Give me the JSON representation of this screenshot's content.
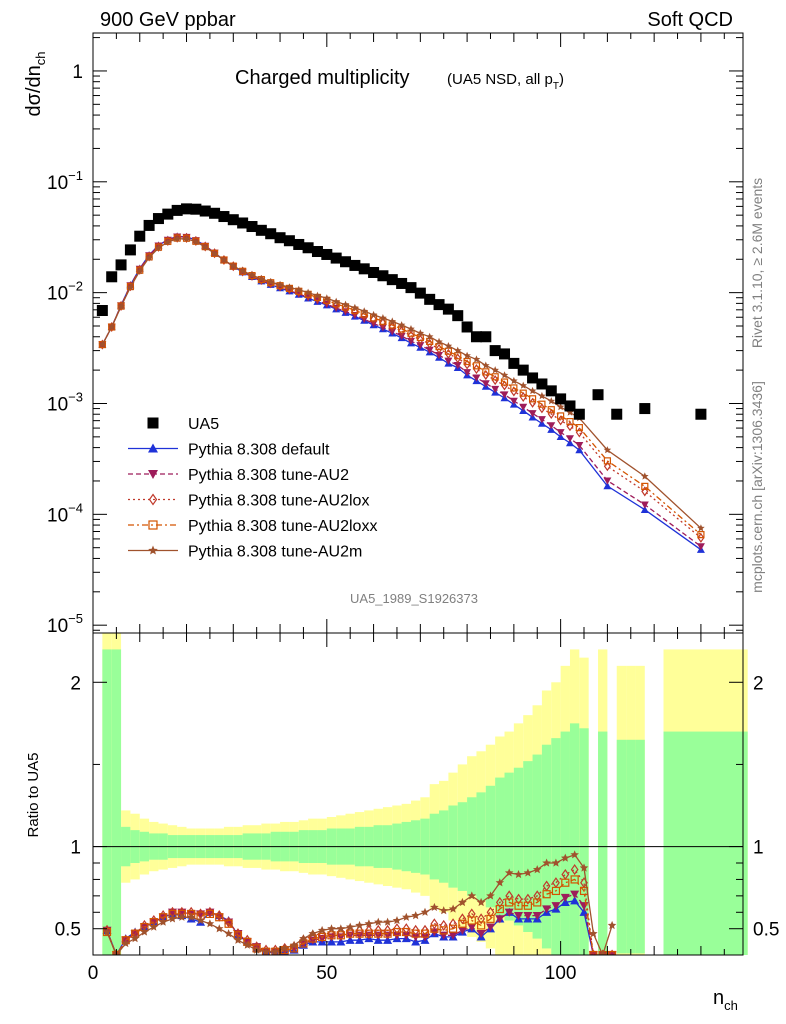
{
  "header": {
    "left": "900 GeV ppbar",
    "right": "Soft QCD"
  },
  "side": {
    "right_top": "Rivet 3.1.10, ≥ 2.6M events",
    "right_bottom": "mcplots.cern.ch [arXiv:1306.3436]"
  },
  "chart_data": [
    {
      "type": "scatter",
      "title": "Charged multiplicity",
      "subtitle": "(UA5 NSD, all p",
      "subtitle_sub": "T",
      "subtitle_close": ")",
      "ylabel": "dσ/dn",
      "ylabel_sub": "ch",
      "yscale": "log",
      "ylim": [
        8.5e-06,
        2.2
      ],
      "xlim": [
        0,
        139
      ],
      "ytick_labels": [
        "10",
        "10",
        "10",
        "10",
        "10",
        "1"
      ],
      "ytick_exps": [
        "−5",
        "−4",
        "−3",
        "−2",
        "−1",
        ""
      ],
      "watermark": "UA5_1989_S1926373",
      "legend_position": "lower-left",
      "series": [
        {
          "name": "UA5",
          "color": "#000000",
          "marker": "square",
          "x": [
            2,
            4,
            6,
            8,
            10,
            12,
            14,
            16,
            18,
            20,
            22,
            24,
            26,
            28,
            30,
            32,
            34,
            36,
            38,
            40,
            42,
            44,
            46,
            48,
            50,
            52,
            54,
            56,
            58,
            60,
            62,
            64,
            66,
            68,
            70,
            72,
            74,
            76,
            78,
            80,
            82,
            84,
            86,
            88,
            90,
            92,
            94,
            96,
            98,
            100,
            102,
            104,
            108,
            112,
            118,
            130
          ],
          "y": [
            0.0069,
            0.0139,
            0.0178,
            0.0243,
            0.0323,
            0.0404,
            0.0466,
            0.0511,
            0.0552,
            0.057,
            0.0566,
            0.0545,
            0.052,
            0.0486,
            0.0455,
            0.0425,
            0.0395,
            0.0365,
            0.034,
            0.0313,
            0.0294,
            0.0272,
            0.0254,
            0.0235,
            0.0221,
            0.0205,
            0.019,
            0.0176,
            0.0164,
            0.0152,
            0.0142,
            0.0131,
            0.0121,
            0.0111,
            0.0099,
            0.0087,
            0.0078,
            0.0071,
            0.0062,
            0.0049,
            0.004,
            0.004,
            0.003,
            0.0028,
            0.0023,
            0.002,
            0.0017,
            0.0015,
            0.0013,
            0.0011,
            0.00095,
            0.0008,
            0.0012,
            0.0008,
            0.0009,
            0.0008
          ]
        },
        {
          "name": "Pythia 8.308 default",
          "color": "#1f32d8",
          "marker": "triangle-up",
          "line": "solid"
        },
        {
          "name": "Pythia 8.308 tune-AU2",
          "color": "#9e1c5a",
          "marker": "triangle-down",
          "line": "dashed"
        },
        {
          "name": "Pythia 8.308 tune-AU2lox",
          "color": "#c0392b",
          "marker": "diamond-open",
          "line": "dotted"
        },
        {
          "name": "Pythia 8.308 tune-AU2loxx",
          "color": "#d35400",
          "marker": "square-open",
          "line": "dashdot"
        },
        {
          "name": "Pythia 8.308 tune-AU2m",
          "color": "#a0522d",
          "marker": "star",
          "line": "solid"
        }
      ],
      "mc_x": [
        2,
        4,
        6,
        8,
        10,
        12,
        14,
        16,
        18,
        20,
        22,
        24,
        26,
        28,
        30,
        32,
        34,
        36,
        38,
        40,
        42,
        44,
        46,
        48,
        50,
        52,
        54,
        56,
        58,
        60,
        62,
        64,
        66,
        68,
        70,
        72,
        74,
        76,
        78,
        80,
        82,
        84,
        86,
        88,
        90,
        92,
        94,
        96,
        98,
        100,
        102,
        104,
        110,
        118,
        130
      ],
      "mc_default": [
        0.0034,
        0.0049,
        0.0077,
        0.0117,
        0.0165,
        0.0218,
        0.0267,
        0.0301,
        0.0322,
        0.0319,
        0.0298,
        0.0265,
        0.0229,
        0.0197,
        0.0172,
        0.0153,
        0.0139,
        0.0127,
        0.0118,
        0.011,
        0.0103,
        0.0096,
        0.0089,
        0.0083,
        0.0077,
        0.0071,
        0.0066,
        0.0061,
        0.0056,
        0.0051,
        0.0047,
        0.0043,
        0.0039,
        0.0035,
        0.0032,
        0.0029,
        0.0026,
        0.0023,
        0.0021,
        0.0018,
        0.0016,
        0.00142,
        0.00126,
        0.00112,
        0.00098,
        0.00086,
        0.00075,
        0.00066,
        0.00058,
        0.0005,
        0.00044,
        0.00038,
        0.00018,
        0.00011,
        4.8e-05
      ],
      "mc_au2m": [
        0.0034,
        0.0049,
        0.0075,
        0.0112,
        0.0157,
        0.0207,
        0.0253,
        0.0286,
        0.0306,
        0.0306,
        0.0288,
        0.0258,
        0.0225,
        0.0197,
        0.0174,
        0.0157,
        0.0144,
        0.0133,
        0.0125,
        0.0118,
        0.0112,
        0.0106,
        0.01,
        0.0094,
        0.0089,
        0.0083,
        0.0078,
        0.0073,
        0.0068,
        0.0063,
        0.0059,
        0.0055,
        0.0051,
        0.0047,
        0.0043,
        0.004,
        0.0036,
        0.0033,
        0.003,
        0.0027,
        0.0025,
        0.0022,
        0.002,
        0.0018,
        0.0016,
        0.00145,
        0.0013,
        0.00117,
        0.00105,
        0.00093,
        0.00083,
        0.00074,
        0.00038,
        0.00022,
        7.5e-05
      ]
    },
    {
      "type": "line",
      "ylabel": "Ratio to UA5",
      "xlabel": "n",
      "xlabel_sub": "ch",
      "ylim": [
        0.34,
        2.3
      ],
      "xlim": [
        0,
        139
      ],
      "x_ticks": [
        0,
        50,
        100
      ],
      "y_ticks": [
        0.5,
        1,
        2
      ],
      "band_colors": {
        "inner": "#99ff99",
        "outer": "#ffff99"
      },
      "band_x": [
        2,
        4,
        6,
        8,
        10,
        12,
        14,
        16,
        18,
        20,
        22,
        24,
        26,
        28,
        30,
        32,
        34,
        36,
        38,
        40,
        42,
        44,
        46,
        48,
        50,
        52,
        54,
        56,
        58,
        60,
        62,
        64,
        66,
        68,
        70,
        72,
        74,
        76,
        78,
        80,
        82,
        84,
        86,
        88,
        90,
        92,
        94,
        96,
        98,
        100,
        102,
        104,
        106,
        108,
        110,
        112,
        114,
        116,
        118,
        122,
        140
      ],
      "band_outer": [
        2.3,
        2.3,
        1.22,
        1.2,
        1.17,
        1.15,
        1.14,
        1.13,
        1.12,
        1.11,
        1.11,
        1.11,
        1.11,
        1.12,
        1.12,
        1.13,
        1.13,
        1.14,
        1.14,
        1.15,
        1.15,
        1.16,
        1.17,
        1.17,
        1.18,
        1.19,
        1.2,
        1.21,
        1.22,
        1.23,
        1.24,
        1.25,
        1.26,
        1.28,
        1.3,
        1.38,
        1.4,
        1.45,
        1.5,
        1.55,
        1.58,
        1.62,
        1.67,
        1.7,
        1.75,
        1.8,
        1.86,
        1.95,
        2.0,
        2.1,
        2.2,
        2.15,
        0,
        2.2,
        0,
        2.1,
        2.1,
        2.1,
        0,
        2.2,
        2.2
      ],
      "band_inner": [
        2.2,
        2.2,
        1.12,
        1.1,
        1.09,
        1.08,
        1.08,
        1.07,
        1.07,
        1.07,
        1.07,
        1.07,
        1.07,
        1.07,
        1.07,
        1.08,
        1.08,
        1.08,
        1.09,
        1.09,
        1.09,
        1.1,
        1.1,
        1.1,
        1.11,
        1.11,
        1.11,
        1.12,
        1.12,
        1.13,
        1.13,
        1.14,
        1.15,
        1.16,
        1.17,
        1.2,
        1.22,
        1.25,
        1.27,
        1.3,
        1.33,
        1.37,
        1.42,
        1.45,
        1.48,
        1.52,
        1.56,
        1.62,
        1.66,
        1.7,
        1.75,
        1.72,
        0,
        1.7,
        0,
        1.65,
        1.65,
        1.65,
        0,
        1.7,
        1.7
      ],
      "ratio_x": [
        3,
        5,
        7,
        9,
        11,
        13,
        15,
        17,
        19,
        21,
        23,
        25,
        27,
        29,
        31,
        33,
        35,
        37,
        39,
        41,
        43,
        45,
        47,
        49,
        51,
        53,
        55,
        57,
        59,
        61,
        63,
        65,
        67,
        69,
        71,
        73,
        75,
        77,
        79,
        81,
        83,
        85,
        87,
        89,
        91,
        93,
        95,
        97,
        99,
        101,
        103,
        105,
        107,
        109,
        111
      ],
      "ratio_default": [
        0.49,
        0.34,
        0.44,
        0.48,
        0.51,
        0.54,
        0.57,
        0.59,
        0.58,
        0.56,
        0.54,
        0.6,
        0.58,
        0.55,
        0.46,
        0.42,
        0.38,
        0.36,
        0.35,
        0.36,
        0.37,
        0.4,
        0.42,
        0.42,
        0.42,
        0.42,
        0.43,
        0.43,
        0.44,
        0.43,
        0.43,
        0.44,
        0.44,
        0.42,
        0.43,
        0.47,
        0.45,
        0.45,
        0.48,
        0.5,
        0.45,
        0.5,
        0.56,
        0.6,
        0.56,
        0.56,
        0.56,
        0.6,
        0.62,
        0.66,
        0.67,
        0.6,
        0.34,
        0.34,
        0.34
      ],
      "ratio_au2": [
        0.49,
        0.34,
        0.43,
        0.47,
        0.51,
        0.54,
        0.57,
        0.6,
        0.6,
        0.59,
        0.59,
        0.6,
        0.57,
        0.54,
        0.47,
        0.42,
        0.39,
        0.36,
        0.36,
        0.37,
        0.38,
        0.41,
        0.43,
        0.44,
        0.45,
        0.45,
        0.46,
        0.46,
        0.46,
        0.46,
        0.46,
        0.46,
        0.46,
        0.45,
        0.45,
        0.48,
        0.46,
        0.46,
        0.49,
        0.51,
        0.47,
        0.51,
        0.56,
        0.6,
        0.58,
        0.58,
        0.58,
        0.62,
        0.64,
        0.69,
        0.71,
        0.64,
        0.34,
        0.34,
        0.34
      ],
      "ratio_au2lox": [
        0.49,
        0.34,
        0.43,
        0.47,
        0.52,
        0.55,
        0.58,
        0.6,
        0.6,
        0.6,
        0.59,
        0.6,
        0.58,
        0.54,
        0.47,
        0.43,
        0.39,
        0.37,
        0.37,
        0.38,
        0.39,
        0.43,
        0.46,
        0.47,
        0.47,
        0.48,
        0.49,
        0.49,
        0.49,
        0.49,
        0.49,
        0.5,
        0.5,
        0.49,
        0.49,
        0.53,
        0.52,
        0.53,
        0.56,
        0.59,
        0.56,
        0.6,
        0.66,
        0.7,
        0.68,
        0.68,
        0.7,
        0.76,
        0.78,
        0.83,
        0.86,
        0.78,
        0.34,
        0.34,
        0.34
      ],
      "ratio_au2loxx": [
        0.48,
        0.34,
        0.43,
        0.47,
        0.51,
        0.54,
        0.57,
        0.59,
        0.59,
        0.59,
        0.58,
        0.59,
        0.57,
        0.53,
        0.46,
        0.42,
        0.38,
        0.36,
        0.36,
        0.37,
        0.38,
        0.41,
        0.44,
        0.45,
        0.46,
        0.46,
        0.47,
        0.47,
        0.47,
        0.47,
        0.47,
        0.48,
        0.48,
        0.47,
        0.47,
        0.5,
        0.49,
        0.5,
        0.53,
        0.55,
        0.52,
        0.56,
        0.62,
        0.66,
        0.64,
        0.64,
        0.66,
        0.71,
        0.73,
        0.78,
        0.8,
        0.73,
        0.34,
        0.34,
        0.34
      ],
      "ratio_au2m": [
        0.48,
        0.34,
        0.41,
        0.44,
        0.48,
        0.51,
        0.54,
        0.56,
        0.57,
        0.57,
        0.55,
        0.53,
        0.5,
        0.47,
        0.43,
        0.4,
        0.37,
        0.36,
        0.36,
        0.38,
        0.4,
        0.44,
        0.47,
        0.49,
        0.5,
        0.5,
        0.51,
        0.52,
        0.53,
        0.54,
        0.54,
        0.55,
        0.57,
        0.58,
        0.6,
        0.63,
        0.61,
        0.62,
        0.66,
        0.7,
        0.66,
        0.7,
        0.78,
        0.84,
        0.83,
        0.84,
        0.86,
        0.9,
        0.9,
        0.93,
        0.95,
        0.87,
        0.47,
        0.34,
        0.52
      ]
    }
  ]
}
